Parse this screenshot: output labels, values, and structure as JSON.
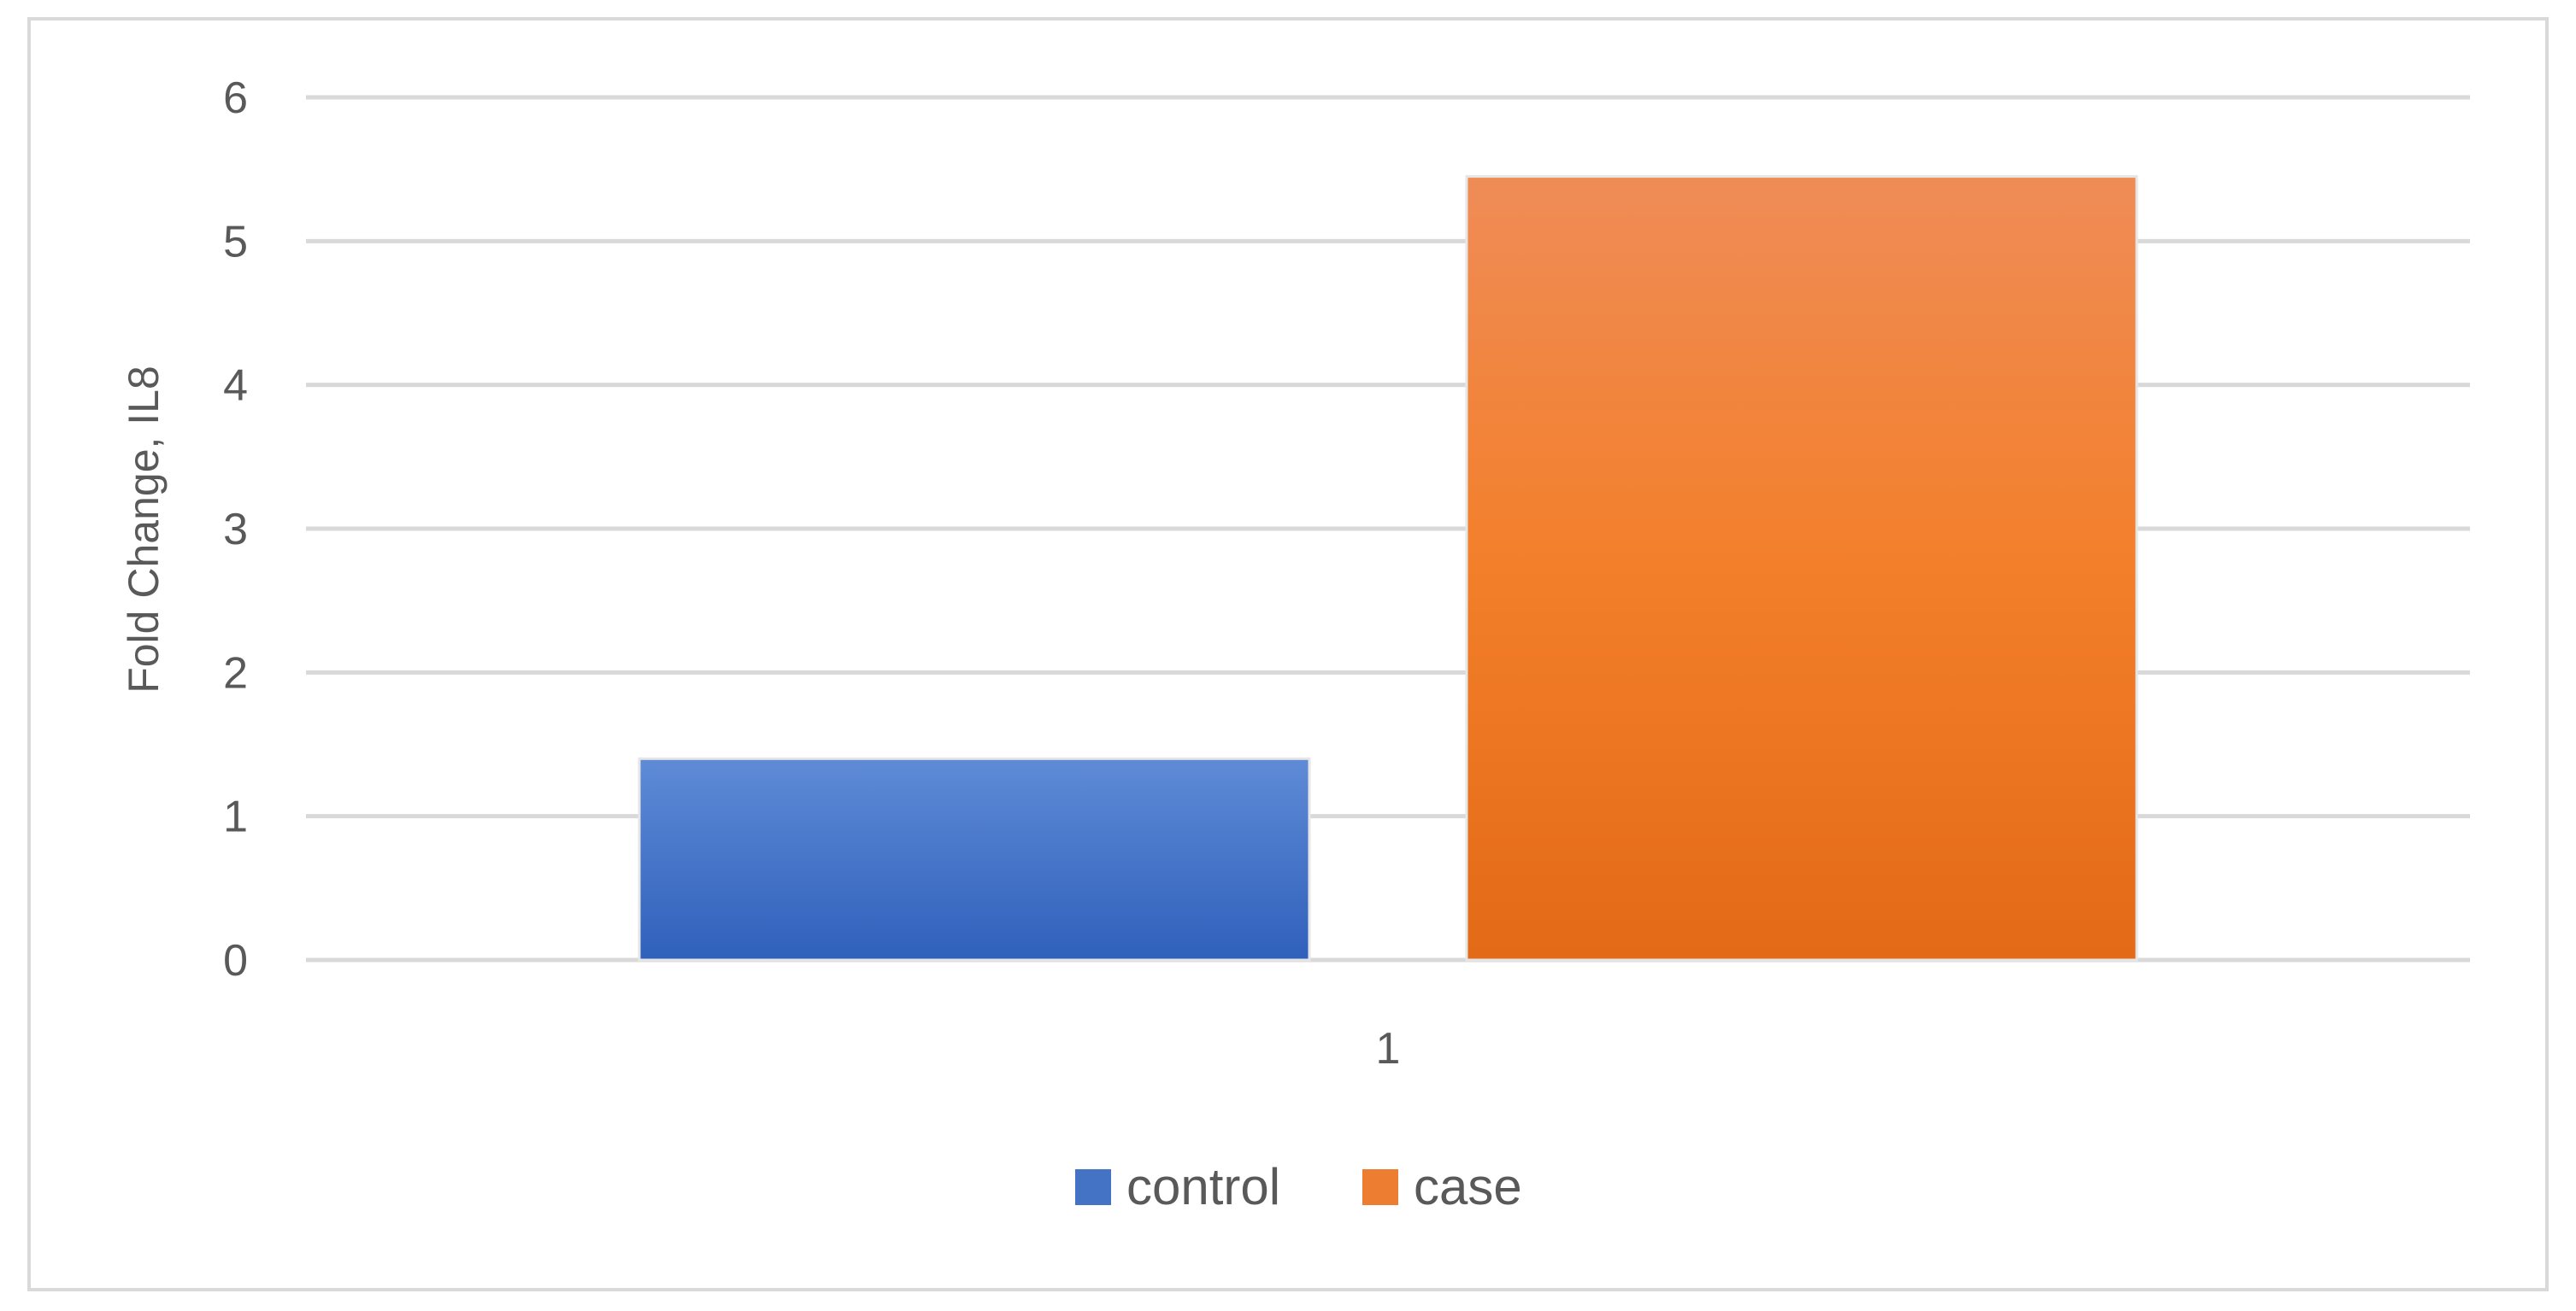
{
  "chart_data": {
    "type": "bar",
    "categories": [
      "1"
    ],
    "series": [
      {
        "name": "control",
        "values": [
          1.4
        ],
        "color": "#4472C4"
      },
      {
        "name": "case",
        "values": [
          5.45
        ],
        "color": "#ED7D31"
      }
    ],
    "title": "",
    "xlabel": "",
    "ylabel": "Fold Change, IL8",
    "ylim": [
      0,
      6
    ],
    "yticks": [
      "0",
      "1",
      "2",
      "3",
      "4",
      "5",
      "6"
    ],
    "grid": true,
    "legend_position": "bottom"
  }
}
